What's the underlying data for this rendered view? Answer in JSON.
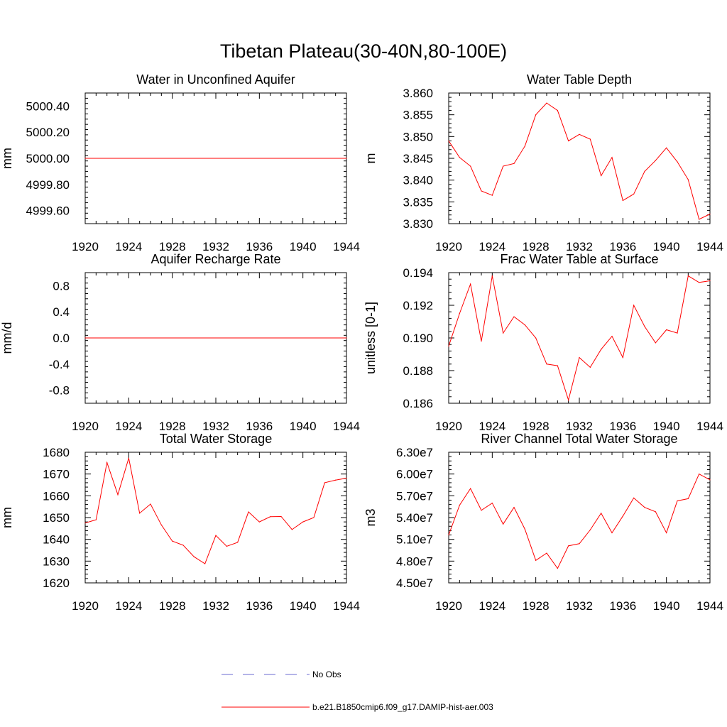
{
  "title": "Tibetan Plateau(30-40N,80-100E)",
  "colors": {
    "model": "#ff0000",
    "obs": "#6a6ad0",
    "axis": "#000000"
  },
  "legend": {
    "obs_label": "No Obs",
    "model_label": "b.e21.B1850cmip6.f09_g17.DAMIP-hist-aer.003"
  },
  "chart_data": [
    {
      "type": "line",
      "title": "Water in Unconfined Aquifer",
      "ylabel": "mm",
      "xlim": [
        1920,
        1944
      ],
      "ylim": [
        4999.5,
        5000.5
      ],
      "xticks": [
        1920,
        1924,
        1928,
        1932,
        1936,
        1940,
        1944
      ],
      "yticks": [
        4999.6,
        4999.8,
        5000.0,
        5000.2,
        5000.4
      ],
      "ytick_labels": [
        "4999.60",
        "4999.80",
        "5000.00",
        "5000.20",
        "5000.40"
      ],
      "x": [
        1920,
        1944
      ],
      "values": [
        5000.0,
        5000.0
      ]
    },
    {
      "type": "line",
      "title": "Water Table Depth",
      "ylabel": "m",
      "xlim": [
        1920,
        1944
      ],
      "ylim": [
        3.83,
        3.86
      ],
      "xticks": [
        1920,
        1924,
        1928,
        1932,
        1936,
        1940,
        1944
      ],
      "yticks": [
        3.83,
        3.835,
        3.84,
        3.845,
        3.85,
        3.855,
        3.86
      ],
      "ytick_labels": [
        "3.830",
        "3.835",
        "3.840",
        "3.845",
        "3.850",
        "3.855",
        "3.860"
      ],
      "x": [
        1920,
        1921,
        1922,
        1923,
        1924,
        1925,
        1926,
        1927,
        1928,
        1929,
        1930,
        1931,
        1932,
        1933,
        1934,
        1935,
        1936,
        1937,
        1938,
        1939,
        1940,
        1941,
        1942,
        1943,
        1944
      ],
      "values": [
        3.849,
        3.8452,
        3.8432,
        3.8375,
        3.8365,
        3.8432,
        3.8438,
        3.8478,
        3.855,
        3.8577,
        3.856,
        3.849,
        3.8505,
        3.8494,
        3.841,
        3.8452,
        3.8353,
        3.8368,
        3.842,
        3.8445,
        3.8474,
        3.8442,
        3.8401,
        3.831,
        3.8322
      ]
    },
    {
      "type": "line",
      "title": "Aquifer Recharge Rate",
      "ylabel": "mm/d",
      "xlim": [
        1920,
        1944
      ],
      "ylim": [
        -1,
        1
      ],
      "xticks": [
        1920,
        1924,
        1928,
        1932,
        1936,
        1940,
        1944
      ],
      "yticks": [
        -0.8,
        -0.4,
        0.0,
        0.4,
        0.8
      ],
      "ytick_labels": [
        "-0.8",
        "-0.4",
        "0.0",
        "0.4",
        "0.8"
      ],
      "x": [
        1920,
        1944
      ],
      "values": [
        0.0,
        0.0
      ]
    },
    {
      "type": "line",
      "title": "Frac Water Table at Surface",
      "ylabel": "unitless [0-1]",
      "xlim": [
        1920,
        1944
      ],
      "ylim": [
        0.186,
        0.194
      ],
      "xticks": [
        1920,
        1924,
        1928,
        1932,
        1936,
        1940,
        1944
      ],
      "yticks": [
        0.186,
        0.188,
        0.19,
        0.192,
        0.194
      ],
      "ytick_labels": [
        "0.186",
        "0.188",
        "0.190",
        "0.192",
        "0.194"
      ],
      "x": [
        1920,
        1921,
        1922,
        1923,
        1924,
        1925,
        1926,
        1927,
        1928,
        1929,
        1930,
        1931,
        1932,
        1933,
        1934,
        1935,
        1936,
        1937,
        1938,
        1939,
        1940,
        1941,
        1942,
        1943,
        1944
      ],
      "values": [
        0.1895,
        0.1915,
        0.1933,
        0.1898,
        0.1938,
        0.1903,
        0.1913,
        0.1908,
        0.19,
        0.1884,
        0.1883,
        0.1862,
        0.1888,
        0.1882,
        0.1893,
        0.1901,
        0.1888,
        0.192,
        0.1907,
        0.1897,
        0.1905,
        0.1903,
        0.1938,
        0.1934,
        0.1935
      ]
    },
    {
      "type": "line",
      "title": "Total Water Storage",
      "ylabel": "mm",
      "xlim": [
        1920,
        1944
      ],
      "ylim": [
        1620,
        1680
      ],
      "xticks": [
        1920,
        1924,
        1928,
        1932,
        1936,
        1940,
        1944
      ],
      "yticks": [
        1620,
        1630,
        1640,
        1650,
        1660,
        1670,
        1680
      ],
      "ytick_labels": [
        "1620",
        "1630",
        "1640",
        "1650",
        "1660",
        "1670",
        "1680"
      ],
      "x": [
        1920,
        1921,
        1922,
        1923,
        1924,
        1925,
        1926,
        1927,
        1928,
        1929,
        1930,
        1931,
        1932,
        1933,
        1934,
        1935,
        1936,
        1937,
        1938,
        1939,
        1940,
        1941,
        1942,
        1943,
        1944
      ],
      "values": [
        1647.5,
        1649,
        1675.3,
        1660.5,
        1677.3,
        1652,
        1656.2,
        1646.6,
        1639.2,
        1637.3,
        1632,
        1628.8,
        1641.8,
        1636.8,
        1638.6,
        1652.6,
        1648,
        1650.4,
        1650.5,
        1644.5,
        1648,
        1650,
        1666,
        1667.2,
        1668.1
      ]
    },
    {
      "type": "line",
      "title": "River Channel Total Water Storage",
      "ylabel": "m3",
      "xlim": [
        1920,
        1944
      ],
      "ylim": [
        45000000,
        63000000
      ],
      "xticks": [
        1920,
        1924,
        1928,
        1932,
        1936,
        1940,
        1944
      ],
      "yticks": [
        45000000,
        48000000,
        51000000,
        54000000,
        57000000,
        60000000,
        63000000
      ],
      "ytick_labels": [
        "4.50e7",
        "4.80e7",
        "5.10e7",
        "5.40e7",
        "5.70e7",
        "6.00e7",
        "6.30e7"
      ],
      "x": [
        1920,
        1921,
        1922,
        1923,
        1924,
        1925,
        1926,
        1927,
        1928,
        1929,
        1930,
        1931,
        1932,
        1933,
        1934,
        1935,
        1936,
        1937,
        1938,
        1939,
        1940,
        1941,
        1942,
        1943,
        1944
      ],
      "values": [
        51600000,
        55700000,
        58000000,
        55000000,
        56000000,
        53100000,
        55400000,
        52400000,
        48100000,
        49100000,
        47000000,
        50100000,
        50400000,
        52300000,
        54600000,
        51900000,
        54200000,
        56700000,
        55400000,
        54800000,
        51900000,
        56300000,
        56600000,
        60000000,
        59200000
      ]
    }
  ]
}
